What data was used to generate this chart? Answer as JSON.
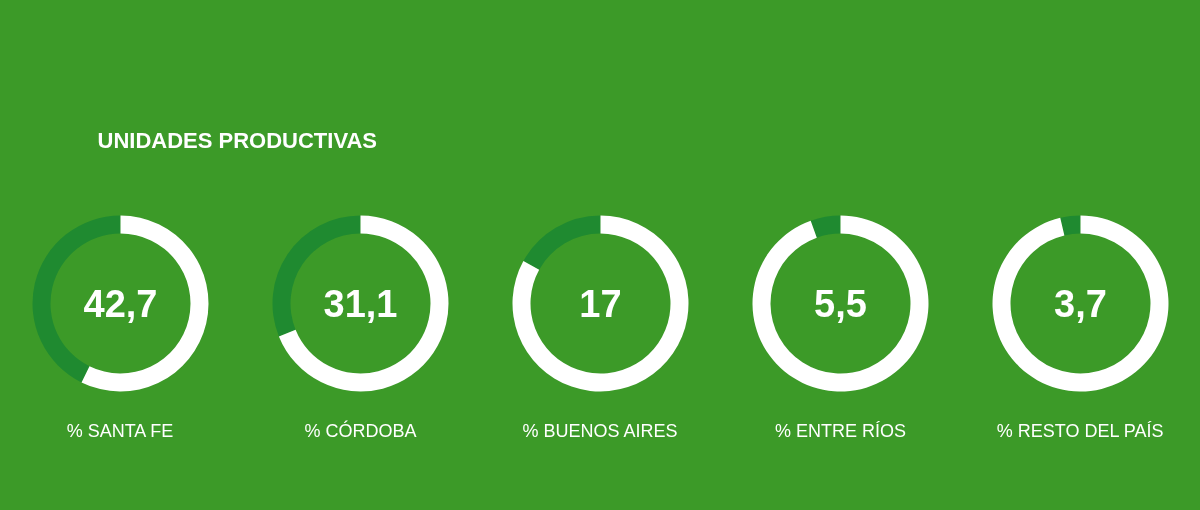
{
  "chart_data": [
    {
      "type": "other",
      "title": "UNIDADES PRODUCTIVAS"
    },
    {
      "type": "donut",
      "xlabel": "% SANTA FE",
      "categories": [
        null,
        null
      ],
      "values": [
        42.7,
        57.3
      ],
      "colors": [
        "#1f8a30",
        "#ffffff"
      ],
      "annotations": [
        "42,7"
      ]
    },
    {
      "type": "donut",
      "xlabel": "% CÓRDOBA",
      "categories": [
        null,
        null
      ],
      "values": [
        31.1,
        68.9
      ],
      "colors": [
        "#1f8a30",
        "#ffffff"
      ],
      "annotations": [
        "31,1"
      ]
    },
    {
      "type": "donut",
      "xlabel": "% BUENOS AIRES",
      "categories": [
        null,
        null
      ],
      "values": [
        17,
        83
      ],
      "colors": [
        "#1f8a30",
        "#ffffff"
      ],
      "annotations": [
        "17"
      ]
    },
    {
      "type": "donut",
      "xlabel": "% ENTRE RÍOS",
      "categories": [
        null,
        null
      ],
      "values": [
        5.5,
        94.5
      ],
      "colors": [
        "#1f8a30",
        "#ffffff"
      ],
      "annotations": [
        "5,5"
      ]
    },
    {
      "type": "donut",
      "xlabel": "% RESTO DEL PAÍS",
      "categories": [
        null,
        null
      ],
      "values": [
        3.7,
        96.3
      ],
      "colors": [
        "#1f8a30",
        "#ffffff"
      ],
      "annotations": [
        "3,7"
      ]
    }
  ]
}
